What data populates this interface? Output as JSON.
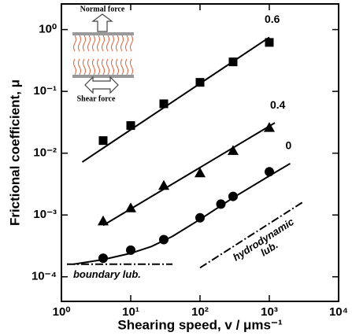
{
  "chart_data": {
    "type": "scatter",
    "x_label": "Shearing speed, v / μms⁻¹",
    "y_label": "Frictional coefficient, μ",
    "log_x": true,
    "log_y": true,
    "xlim": [
      1,
      10000
    ],
    "ylim": [
      4e-05,
      2.6
    ],
    "xticks": [
      {
        "value": 1,
        "label": "10⁰"
      },
      {
        "value": 10,
        "label": "10¹"
      },
      {
        "value": 100,
        "label": "10²"
      },
      {
        "value": 1000,
        "label": "10³"
      },
      {
        "value": 10000,
        "label": "10⁴"
      }
    ],
    "yticks": [
      {
        "value": 0.0001,
        "label": "10⁻⁴"
      },
      {
        "value": 0.001,
        "label": "10⁻³"
      },
      {
        "value": 0.01,
        "label": "10⁻²"
      },
      {
        "value": 0.1,
        "label": "10⁻¹"
      },
      {
        "value": 1,
        "label": "10⁰"
      }
    ],
    "series": [
      {
        "name": "0.6",
        "marker": "square",
        "color": "#000000",
        "x": [
          4,
          10,
          30,
          100,
          300,
          1000
        ],
        "values": [
          0.016,
          0.028,
          0.063,
          0.14,
          0.3,
          0.62
        ],
        "fit": {
          "x": [
            2,
            1000
          ],
          "values": [
            0.0072,
            0.75
          ]
        }
      },
      {
        "name": "0.4",
        "marker": "triangle",
        "color": "#000000",
        "x": [
          4,
          10,
          30,
          100,
          300,
          1000
        ],
        "values": [
          0.0008,
          0.0013,
          0.003,
          0.0048,
          0.011,
          0.026
        ],
        "fit": {
          "x": [
            4,
            1200
          ],
          "values": [
            0.00068,
            0.031
          ]
        }
      },
      {
        "name": "0",
        "marker": "circle",
        "color": "#000000",
        "x": [
          4,
          10,
          30,
          100,
          200,
          300,
          1000
        ],
        "values": [
          0.0002,
          0.00027,
          0.0004,
          0.0009,
          0.0015,
          0.002,
          0.005
        ],
        "fit": {
          "x": [
            1.5,
            4,
            10,
            20,
            40,
            100,
            300,
            1000,
            2000
          ],
          "values": [
            0.00016,
            0.00019,
            0.00024,
            0.00031,
            0.00045,
            0.00085,
            0.0019,
            0.0043,
            0.0068
          ]
        }
      }
    ],
    "reference_lines": [
      {
        "label": [
          "boundary lub."
        ],
        "x": [
          1.2,
          40
        ],
        "values": [
          0.00016,
          0.00016
        ]
      },
      {
        "label": [
          "hydrodynamic",
          "lub."
        ],
        "x": [
          100,
          3000
        ],
        "values": [
          0.00014,
          0.0016
        ]
      }
    ],
    "inset": {
      "labels": [
        "Normal force",
        "Shear force"
      ]
    }
  }
}
